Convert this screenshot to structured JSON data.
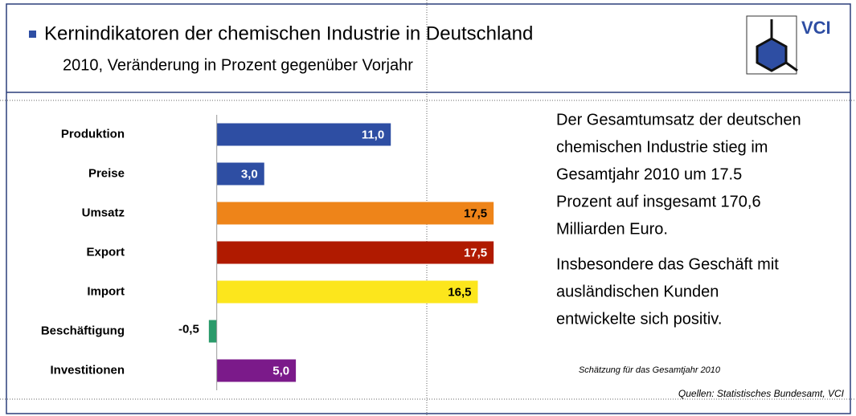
{
  "header": {
    "title": "Kernindikatoren der chemischen Industrie in Deutschland",
    "subtitle": "2010, Veränderung in Prozent gegenüber Vorjahr",
    "logo": "VCI"
  },
  "chart_data": {
    "type": "bar",
    "orientation": "horizontal",
    "categories": [
      "Produktion",
      "Preise",
      "Umsatz",
      "Export",
      "Import",
      "Beschäftigung",
      "Investitionen"
    ],
    "values": [
      11.0,
      3.0,
      17.5,
      17.5,
      16.5,
      -0.5,
      5.0
    ],
    "value_labels": [
      "11,0",
      "3,0",
      "17,5",
      "17,5",
      "16,5",
      "-0,5",
      "5,0"
    ],
    "colors": [
      "#2e4ea3",
      "#2e4ea3",
      "#ee8419",
      "#b01a00",
      "#fce61c",
      "#2a9a6a",
      "#7b1a8a"
    ],
    "xlim": [
      -1,
      18
    ]
  },
  "text": {
    "paragraphs": [
      [
        "Der Gesamtumsatz der deutschen",
        "chemischen Industrie stieg im",
        "Gesamtjahr 2010 um 17.5",
        "Prozent auf insgesamt 170,6",
        "Milliarden Euro."
      ],
      [
        "Insbesondere das Geschäft mit",
        "ausländischen Kunden",
        "entwickelte sich positiv."
      ]
    ],
    "note": "Schätzung für das Gesamtjahr 2010",
    "source": "Quellen: Statistisches Bundesamt, VCI"
  }
}
